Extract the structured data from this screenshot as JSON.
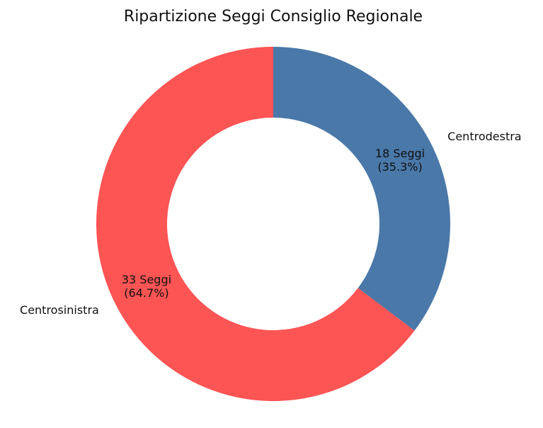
{
  "chart_data": {
    "type": "pie",
    "title": "Ripartizione Seggi Consiglio Regionale",
    "categories": [
      "Centrodestra",
      "Centrosinistra"
    ],
    "values": [
      18,
      33
    ],
    "value_labels": [
      [
        "18 Seggi",
        "(35.3%)"
      ],
      [
        "33 Seggi",
        "(64.7%)"
      ]
    ],
    "colors": [
      "#4a78a9",
      "#fd5454"
    ],
    "donut": true
  }
}
